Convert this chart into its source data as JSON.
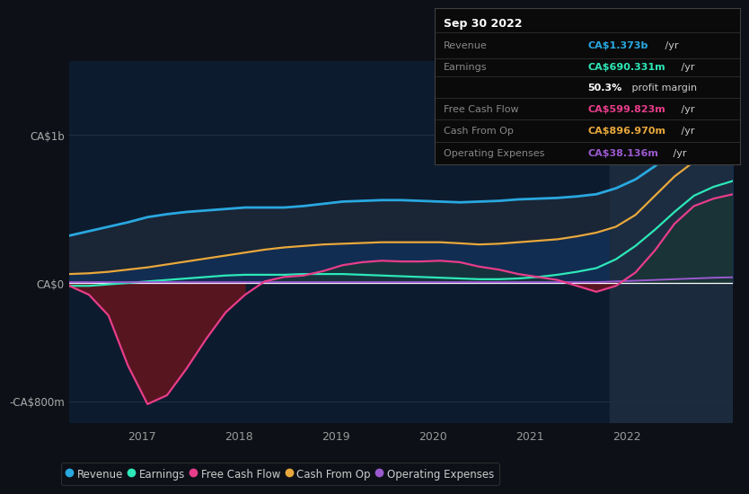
{
  "bg_color": "#0d1117",
  "plot_bg_color": "#0d1b2e",
  "colors": {
    "revenue": "#29a8e0",
    "earnings": "#2de8b8",
    "free_cash_flow": "#e83d8a",
    "cash_from_op": "#e8a83d",
    "operating_expenses": "#9b59d0"
  },
  "ylim": [
    -950,
    1500
  ],
  "xlim_start": 2016.25,
  "xlim_end": 2023.1,
  "xticks": [
    2017,
    2018,
    2019,
    2020,
    2021,
    2022
  ],
  "highlight_x_start": 2021.83,
  "highlight_x_end": 2023.1,
  "ylabel_top": "CA$1b",
  "ylabel_zero": "CA$0",
  "ylabel_bottom": "-CA$800m",
  "yticks_vals": [
    1000,
    0,
    -800
  ],
  "legend": [
    {
      "label": "Revenue",
      "color": "#29a8e0"
    },
    {
      "label": "Earnings",
      "color": "#2de8b8"
    },
    {
      "label": "Free Cash Flow",
      "color": "#e83d8a"
    },
    {
      "label": "Cash From Op",
      "color": "#e8a83d"
    },
    {
      "label": "Operating Expenses",
      "color": "#9b59d0"
    }
  ],
  "info_box": {
    "title": "Sep 30 2022",
    "rows": [
      {
        "label": "Revenue",
        "value": "CA$1.373b",
        "unit": " /yr",
        "color": "#29a8e0"
      },
      {
        "label": "Earnings",
        "value": "CA$690.331m",
        "unit": " /yr",
        "color": "#2de8b8"
      },
      {
        "label": "",
        "value": "50.3%",
        "unit": " profit margin",
        "color": "#ffffff"
      },
      {
        "label": "Free Cash Flow",
        "value": "CA$599.823m",
        "unit": " /yr",
        "color": "#e83d8a"
      },
      {
        "label": "Cash From Op",
        "value": "CA$896.970m",
        "unit": " /yr",
        "color": "#e8a83d"
      },
      {
        "label": "Operating Expenses",
        "value": "CA$38.136m",
        "unit": " /yr",
        "color": "#9b59d0"
      }
    ]
  },
  "revenue": [
    320,
    350,
    380,
    410,
    445,
    465,
    480,
    490,
    500,
    510,
    510,
    510,
    520,
    535,
    550,
    555,
    560,
    560,
    555,
    550,
    545,
    550,
    555,
    565,
    570,
    575,
    585,
    600,
    640,
    700,
    790,
    900,
    1050,
    1210,
    1373
  ],
  "earnings": [
    -20,
    -20,
    -10,
    0,
    10,
    20,
    30,
    40,
    50,
    55,
    55,
    55,
    60,
    60,
    60,
    55,
    50,
    45,
    40,
    35,
    30,
    25,
    25,
    30,
    40,
    55,
    75,
    100,
    160,
    250,
    360,
    480,
    590,
    650,
    690
  ],
  "free_cash_flow": [
    -20,
    -80,
    -220,
    -560,
    -820,
    -760,
    -580,
    -380,
    -200,
    -80,
    10,
    40,
    50,
    80,
    120,
    140,
    150,
    145,
    145,
    150,
    140,
    110,
    90,
    60,
    40,
    20,
    -20,
    -60,
    -20,
    70,
    220,
    400,
    520,
    570,
    600
  ],
  "cash_from_op": [
    60,
    65,
    75,
    90,
    105,
    125,
    145,
    165,
    185,
    205,
    225,
    240,
    250,
    260,
    265,
    270,
    275,
    275,
    275,
    275,
    268,
    260,
    265,
    275,
    285,
    295,
    315,
    340,
    380,
    460,
    590,
    720,
    820,
    870,
    897
  ],
  "operating_expenses": [
    5,
    5,
    5,
    5,
    5,
    5,
    5,
    5,
    5,
    5,
    5,
    5,
    5,
    5,
    5,
    5,
    5,
    5,
    5,
    5,
    5,
    5,
    5,
    5,
    5,
    5,
    5,
    5,
    10,
    15,
    20,
    25,
    30,
    35,
    38
  ],
  "n_points": 35,
  "x_start": 2016.25,
  "x_end": 2023.1
}
